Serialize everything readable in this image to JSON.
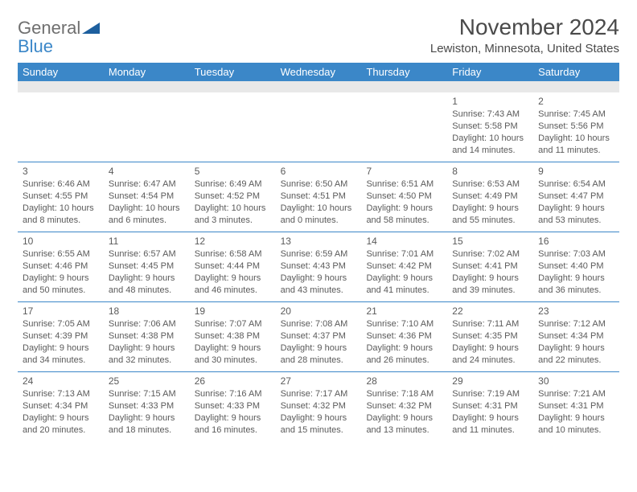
{
  "brand": {
    "text1": "General",
    "text2": "Blue",
    "tri_color": "#1d5f9e"
  },
  "title": "November 2024",
  "location": "Lewiston, Minnesota, United States",
  "colors": {
    "header_blue": "#3b87c8",
    "gray_bar": "#e8e8e8",
    "rule": "#3b87c8",
    "text": "#5a5a5a",
    "title_text": "#4a4a4a",
    "logo_gray": "#6f6f6f"
  },
  "weekdays": [
    "Sunday",
    "Monday",
    "Tuesday",
    "Wednesday",
    "Thursday",
    "Friday",
    "Saturday"
  ],
  "weeks": [
    [
      {
        "n": "",
        "sr": "",
        "ss": "",
        "dl": ""
      },
      {
        "n": "",
        "sr": "",
        "ss": "",
        "dl": ""
      },
      {
        "n": "",
        "sr": "",
        "ss": "",
        "dl": ""
      },
      {
        "n": "",
        "sr": "",
        "ss": "",
        "dl": ""
      },
      {
        "n": "",
        "sr": "",
        "ss": "",
        "dl": ""
      },
      {
        "n": "1",
        "sr": "Sunrise: 7:43 AM",
        "ss": "Sunset: 5:58 PM",
        "dl": "Daylight: 10 hours and 14 minutes."
      },
      {
        "n": "2",
        "sr": "Sunrise: 7:45 AM",
        "ss": "Sunset: 5:56 PM",
        "dl": "Daylight: 10 hours and 11 minutes."
      }
    ],
    [
      {
        "n": "3",
        "sr": "Sunrise: 6:46 AM",
        "ss": "Sunset: 4:55 PM",
        "dl": "Daylight: 10 hours and 8 minutes."
      },
      {
        "n": "4",
        "sr": "Sunrise: 6:47 AM",
        "ss": "Sunset: 4:54 PM",
        "dl": "Daylight: 10 hours and 6 minutes."
      },
      {
        "n": "5",
        "sr": "Sunrise: 6:49 AM",
        "ss": "Sunset: 4:52 PM",
        "dl": "Daylight: 10 hours and 3 minutes."
      },
      {
        "n": "6",
        "sr": "Sunrise: 6:50 AM",
        "ss": "Sunset: 4:51 PM",
        "dl": "Daylight: 10 hours and 0 minutes."
      },
      {
        "n": "7",
        "sr": "Sunrise: 6:51 AM",
        "ss": "Sunset: 4:50 PM",
        "dl": "Daylight: 9 hours and 58 minutes."
      },
      {
        "n": "8",
        "sr": "Sunrise: 6:53 AM",
        "ss": "Sunset: 4:49 PM",
        "dl": "Daylight: 9 hours and 55 minutes."
      },
      {
        "n": "9",
        "sr": "Sunrise: 6:54 AM",
        "ss": "Sunset: 4:47 PM",
        "dl": "Daylight: 9 hours and 53 minutes."
      }
    ],
    [
      {
        "n": "10",
        "sr": "Sunrise: 6:55 AM",
        "ss": "Sunset: 4:46 PM",
        "dl": "Daylight: 9 hours and 50 minutes."
      },
      {
        "n": "11",
        "sr": "Sunrise: 6:57 AM",
        "ss": "Sunset: 4:45 PM",
        "dl": "Daylight: 9 hours and 48 minutes."
      },
      {
        "n": "12",
        "sr": "Sunrise: 6:58 AM",
        "ss": "Sunset: 4:44 PM",
        "dl": "Daylight: 9 hours and 46 minutes."
      },
      {
        "n": "13",
        "sr": "Sunrise: 6:59 AM",
        "ss": "Sunset: 4:43 PM",
        "dl": "Daylight: 9 hours and 43 minutes."
      },
      {
        "n": "14",
        "sr": "Sunrise: 7:01 AM",
        "ss": "Sunset: 4:42 PM",
        "dl": "Daylight: 9 hours and 41 minutes."
      },
      {
        "n": "15",
        "sr": "Sunrise: 7:02 AM",
        "ss": "Sunset: 4:41 PM",
        "dl": "Daylight: 9 hours and 39 minutes."
      },
      {
        "n": "16",
        "sr": "Sunrise: 7:03 AM",
        "ss": "Sunset: 4:40 PM",
        "dl": "Daylight: 9 hours and 36 minutes."
      }
    ],
    [
      {
        "n": "17",
        "sr": "Sunrise: 7:05 AM",
        "ss": "Sunset: 4:39 PM",
        "dl": "Daylight: 9 hours and 34 minutes."
      },
      {
        "n": "18",
        "sr": "Sunrise: 7:06 AM",
        "ss": "Sunset: 4:38 PM",
        "dl": "Daylight: 9 hours and 32 minutes."
      },
      {
        "n": "19",
        "sr": "Sunrise: 7:07 AM",
        "ss": "Sunset: 4:38 PM",
        "dl": "Daylight: 9 hours and 30 minutes."
      },
      {
        "n": "20",
        "sr": "Sunrise: 7:08 AM",
        "ss": "Sunset: 4:37 PM",
        "dl": "Daylight: 9 hours and 28 minutes."
      },
      {
        "n": "21",
        "sr": "Sunrise: 7:10 AM",
        "ss": "Sunset: 4:36 PM",
        "dl": "Daylight: 9 hours and 26 minutes."
      },
      {
        "n": "22",
        "sr": "Sunrise: 7:11 AM",
        "ss": "Sunset: 4:35 PM",
        "dl": "Daylight: 9 hours and 24 minutes."
      },
      {
        "n": "23",
        "sr": "Sunrise: 7:12 AM",
        "ss": "Sunset: 4:34 PM",
        "dl": "Daylight: 9 hours and 22 minutes."
      }
    ],
    [
      {
        "n": "24",
        "sr": "Sunrise: 7:13 AM",
        "ss": "Sunset: 4:34 PM",
        "dl": "Daylight: 9 hours and 20 minutes."
      },
      {
        "n": "25",
        "sr": "Sunrise: 7:15 AM",
        "ss": "Sunset: 4:33 PM",
        "dl": "Daylight: 9 hours and 18 minutes."
      },
      {
        "n": "26",
        "sr": "Sunrise: 7:16 AM",
        "ss": "Sunset: 4:33 PM",
        "dl": "Daylight: 9 hours and 16 minutes."
      },
      {
        "n": "27",
        "sr": "Sunrise: 7:17 AM",
        "ss": "Sunset: 4:32 PM",
        "dl": "Daylight: 9 hours and 15 minutes."
      },
      {
        "n": "28",
        "sr": "Sunrise: 7:18 AM",
        "ss": "Sunset: 4:32 PM",
        "dl": "Daylight: 9 hours and 13 minutes."
      },
      {
        "n": "29",
        "sr": "Sunrise: 7:19 AM",
        "ss": "Sunset: 4:31 PM",
        "dl": "Daylight: 9 hours and 11 minutes."
      },
      {
        "n": "30",
        "sr": "Sunrise: 7:21 AM",
        "ss": "Sunset: 4:31 PM",
        "dl": "Daylight: 9 hours and 10 minutes."
      }
    ]
  ]
}
